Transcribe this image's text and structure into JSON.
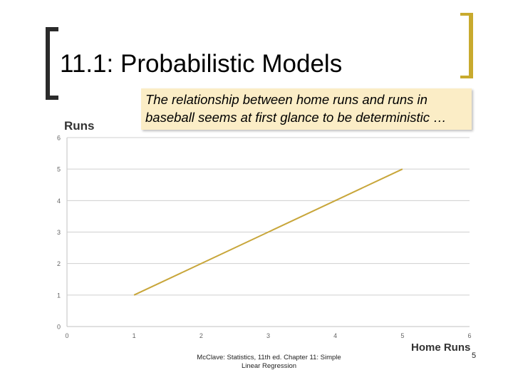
{
  "slide": {
    "title": "11.1: Probabilistic Models",
    "callout_line1": "The relationship between home runs and runs in",
    "callout_line2": "baseball seems at first glance to be deterministic …",
    "footer_line1": "McClave: Statistics, 11th ed. Chapter 11: Simple",
    "footer_line2": "Linear Regression",
    "page_number": "5"
  },
  "chart_data": {
    "type": "line",
    "xlabel": "Home Runs",
    "ylabel": "Runs",
    "xlim": [
      0,
      6
    ],
    "ylim": [
      0,
      6
    ],
    "x_ticks": [
      "0",
      "1",
      "2",
      "3",
      "4",
      "5",
      "6"
    ],
    "y_ticks": [
      "0",
      "1",
      "2",
      "3",
      "4",
      "5",
      "6"
    ],
    "grid": "horizontal",
    "line_color": "#c8a63a",
    "series": [
      {
        "x": [
          1,
          5
        ],
        "y": [
          1,
          5
        ]
      }
    ]
  }
}
